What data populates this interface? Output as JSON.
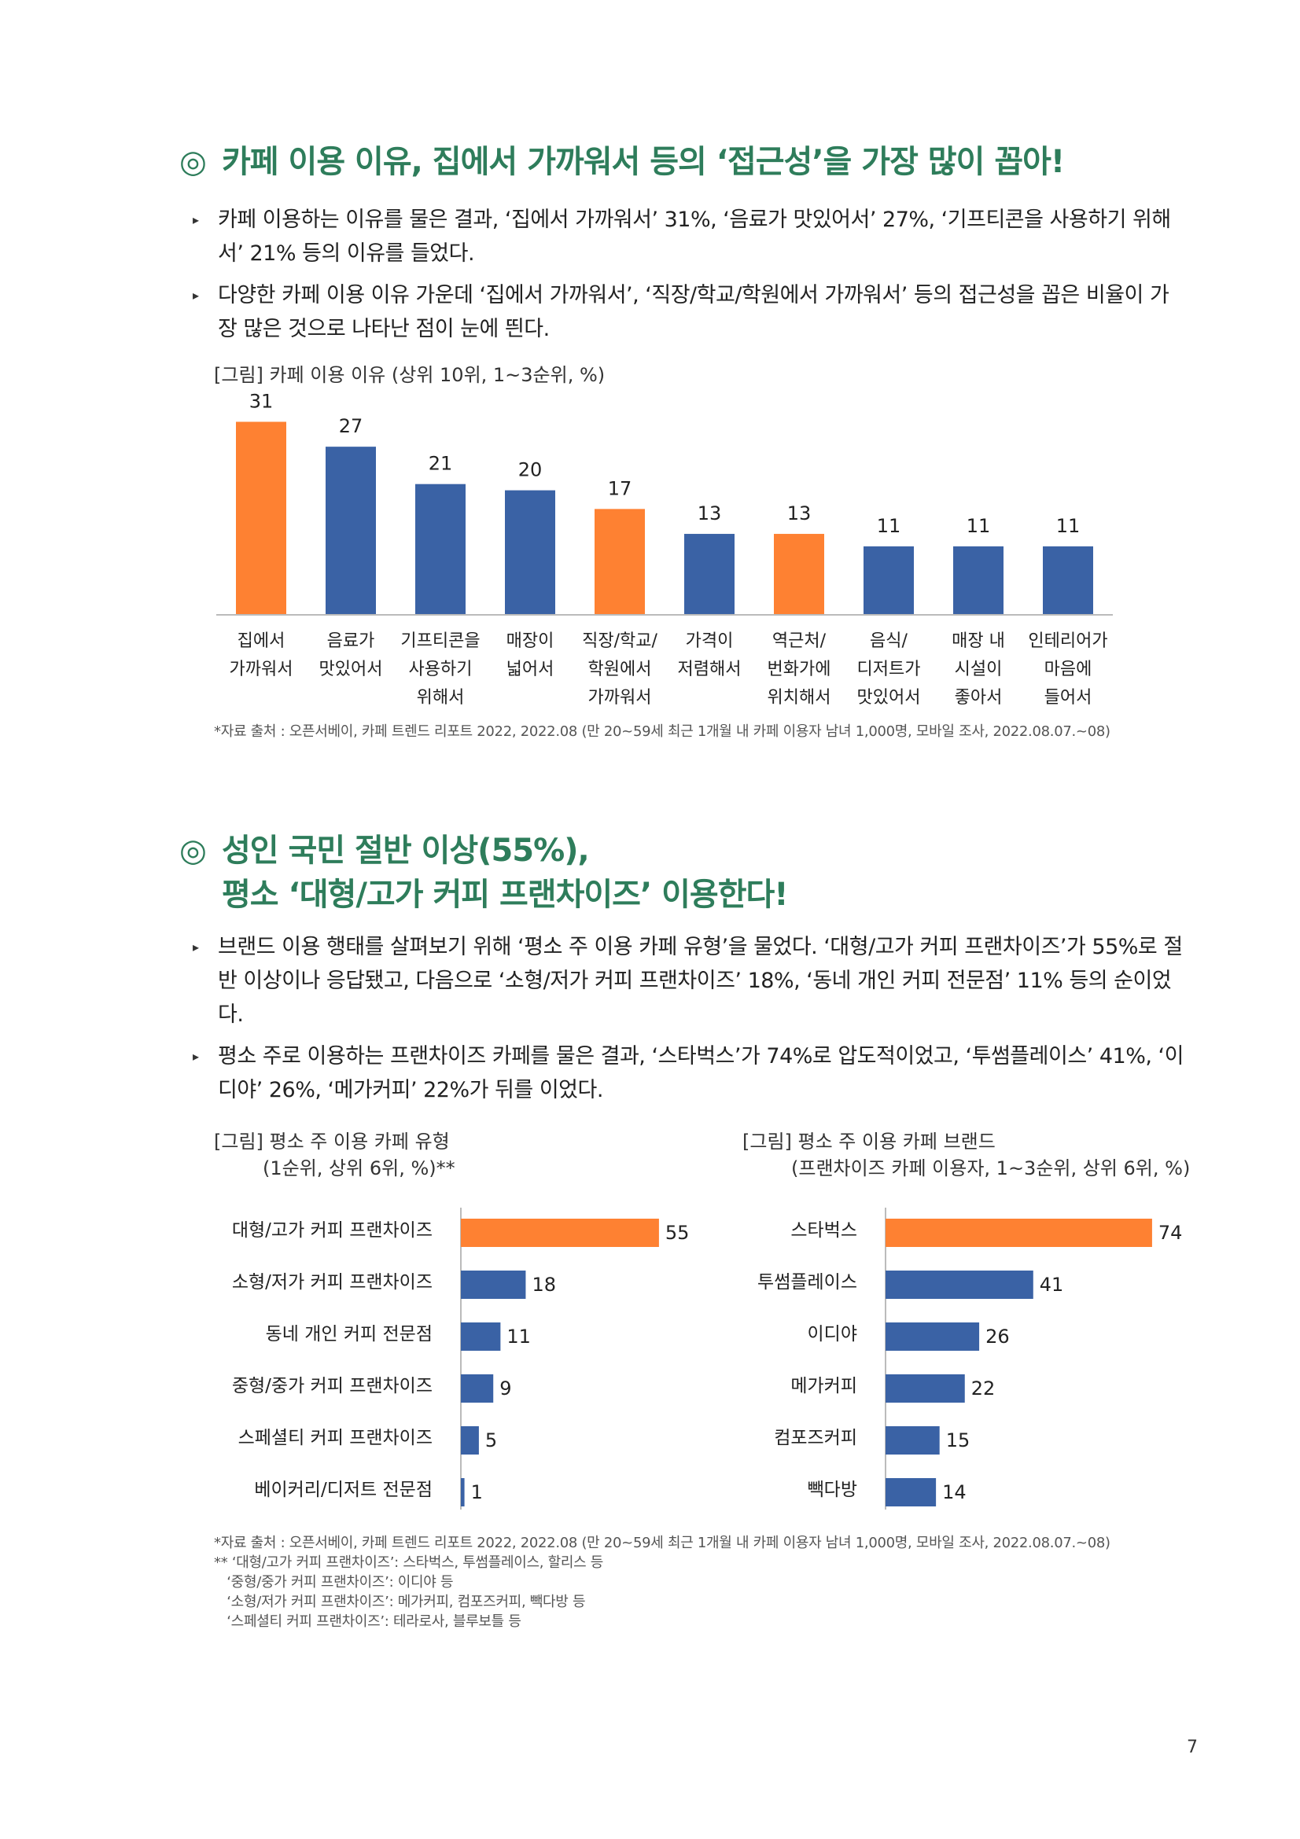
{
  "colors": {
    "orange": "#fe8132",
    "blue": "#3a62a5",
    "title_green": "#2e7d5b"
  },
  "section1": {
    "marker": "◎",
    "title": "카페 이용 이유, 집에서 가까워서 등의 ‘접근성’을 가장 많이 꼽아!",
    "bullets": [
      "카페 이용하는 이유를 물은 결과, ‘집에서 가까워서’ 31%, ‘음료가 맛있어서’ 27%, ‘기프티콘을 사용하기 위해서’ 21% 등의 이유를 들었다.",
      "다양한 카페 이용 이유 가운데 ‘집에서 가까워서’, ‘직장/학교/학원에서 가까워서’ 등의 접근성을 꼽은 비율이 가장 많은 것으로 나타난 점이 눈에 띈다."
    ],
    "figure_title": "[그림] 카페 이용 이유 (상위 10위, 1~3순위, %)",
    "source": "*자료 출처 : 오픈서베이, 카페 트렌드 리포트 2022, 2022.08 (만 20~59세 최근 1개월 내 카페 이용자 남녀 1,000명, 모바일 조사, 2022.08.07.~08)"
  },
  "section2": {
    "marker": "◎",
    "title_line1": "성인 국민 절반 이상(55%),",
    "title_line2": "평소 ‘대형/고가 커피 프랜차이즈’ 이용한다!",
    "bullets": [
      "브랜드 이용 행태를 살펴보기 위해 ‘평소 주 이용 카페 유형’을 물었다. ‘대형/고가 커피 프랜차이즈’가 55%로 절반 이상이나 응답됐고, 다음으로 ‘소형/저가 커피 프랜차이즈’ 18%, ‘동네 개인 커피 전문점’ 11% 등의 순이었다.",
      "평소 주로 이용하는 프랜차이즈 카페를 물은 결과, ‘스타벅스’가 74%로 압도적이었고, ‘투썸플레이스’ 41%, ‘이디야’ 26%, ‘메가커피’ 22%가 뒤를 이었다."
    ],
    "fig_left_title1": "[그림] 평소 주 이용 카페 유형",
    "fig_left_title2": "(1순위, 상위 6위, %)**",
    "fig_right_title1": "[그림] 평소 주 이용 카페 브랜드",
    "fig_right_title2": "(프랜차이즈 카페 이용자, 1~3순위, 상위 6위, %)",
    "source_lines": [
      "*자료 출처 : 오픈서베이, 카페 트렌드 리포트 2022, 2022.08 (만 20~59세 최근 1개월 내 카페 이용자 남녀 1,000명, 모바일 조사, 2022.08.07.~08)",
      "** ‘대형/고가 커피 프랜차이즈’: 스타벅스, 투썸플레이스, 할리스 등",
      "   ‘중형/중가 커피 프랜차이즈’: 이디야 등",
      "   ‘소형/저가 커피 프랜차이즈’: 메가커피, 컴포즈커피, 빽다방 등",
      "   ‘스페셜티 커피 프랜차이즈’: 테라로사, 블루보틀 등"
    ]
  },
  "page_number": "7",
  "chart_data": [
    {
      "type": "bar",
      "categories": [
        [
          "집에서",
          "가까워서"
        ],
        [
          "음료가",
          "맛있어서"
        ],
        [
          "기프티콘을",
          "사용하기",
          "위해서"
        ],
        [
          "매장이",
          "넓어서"
        ],
        [
          "직장/학교/",
          "학원에서",
          "가까워서"
        ],
        [
          "가격이",
          "저렴해서"
        ],
        [
          "역근처/",
          "번화가에",
          "위치해서"
        ],
        [
          "음식/",
          "디저트가",
          "맛있어서"
        ],
        [
          "매장 내",
          "시설이",
          "좋아서"
        ],
        [
          "인테리어가",
          "마음에",
          "들어서"
        ]
      ],
      "values": [
        31,
        27,
        21,
        20,
        17,
        13,
        13,
        11,
        11,
        11
      ],
      "highlight": [
        true,
        false,
        false,
        false,
        true,
        false,
        true,
        false,
        false,
        false
      ],
      "ylim": [
        0,
        35
      ]
    },
    {
      "type": "bar",
      "orientation": "horizontal",
      "categories": [
        "대형/고가 커피 프랜차이즈",
        "소형/저가 커피 프랜차이즈",
        "동네 개인 커피 전문점",
        "중형/중가 커피 프랜차이즈",
        "스페셜티 커피 프랜차이즈",
        "베이커리/디저트 전문점"
      ],
      "values": [
        55,
        18,
        11,
        9,
        5,
        1
      ],
      "highlight": [
        true,
        false,
        false,
        false,
        false,
        false
      ],
      "xlim": [
        0,
        80
      ]
    },
    {
      "type": "bar",
      "orientation": "horizontal",
      "categories": [
        "스타벅스",
        "투썸플레이스",
        "이디야",
        "메가커피",
        "컴포즈커피",
        "빽다방"
      ],
      "values": [
        74,
        41,
        26,
        22,
        15,
        14
      ],
      "highlight": [
        true,
        false,
        false,
        false,
        false,
        false
      ],
      "xlim": [
        0,
        80
      ]
    }
  ]
}
